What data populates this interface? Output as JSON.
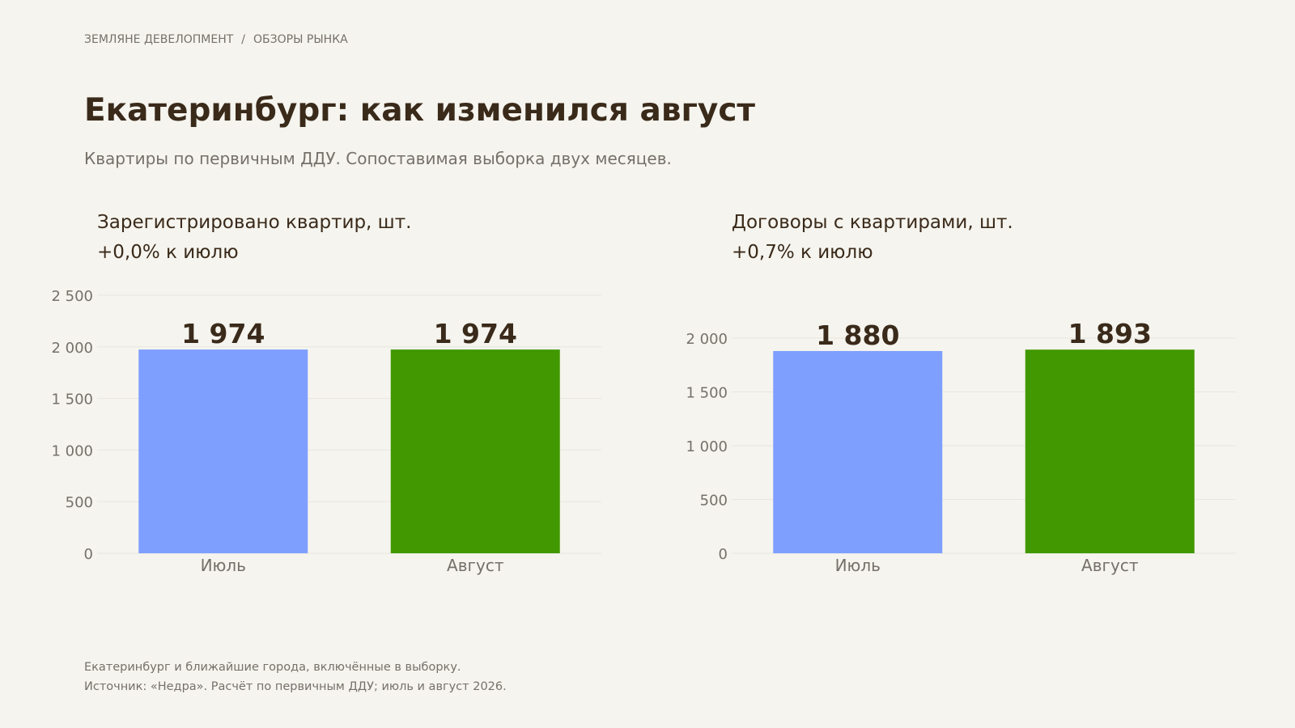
{
  "header": {
    "breadcrumb": [
      "ЗЕМЛЯНЕ ДЕВЕЛОПМЕНТ",
      "ОБЗОРЫ РЫНКА"
    ],
    "breadcrumb_separator": "/",
    "title": "Екатеринбург: как изменился август",
    "subtitle": "Квартиры по первичным ДДУ. Сопоставимая выборка двух месяцев."
  },
  "colors": {
    "july": "#7f9fff",
    "august": "#419800",
    "text_dark": "#3a2a1a",
    "text_muted": "#76706a",
    "grid": "#e8e6df",
    "background": "#f5f4ee"
  },
  "chart_data": [
    {
      "type": "bar",
      "title": "Зарегистрировано квартир, шт.",
      "change_label": "+0,0% к июлю",
      "categories": [
        "Июль",
        "Август"
      ],
      "values": [
        1974,
        1974
      ],
      "value_labels": [
        "1 974",
        "1 974"
      ],
      "ylim": [
        0,
        2500
      ],
      "yticks": [
        0,
        500,
        1000,
        1500,
        2000,
        2500
      ],
      "ytick_labels": [
        "0",
        "500",
        "1 000",
        "1 500",
        "2 000",
        "2 500"
      ],
      "grid": true,
      "xlabel": "",
      "ylabel": ""
    },
    {
      "type": "bar",
      "title": "Договоры с квартирами, шт.",
      "change_label": "+0,7% к июлю",
      "categories": [
        "Июль",
        "Август"
      ],
      "values": [
        1880,
        1893
      ],
      "value_labels": [
        "1 880",
        "1 893"
      ],
      "ylim": [
        0,
        2000
      ],
      "yticks": [
        0,
        500,
        1000,
        1500,
        2000
      ],
      "ytick_labels": [
        "0",
        "500",
        "1 000",
        "1 500",
        "2 000"
      ],
      "grid": true,
      "xlabel": "",
      "ylabel": ""
    }
  ],
  "footnotes": [
    "Екатеринбург и ближайшие города, включённые в выборку.",
    "Источник: «Недра». Расчёт по первичным ДДУ; июль и август 2026."
  ]
}
